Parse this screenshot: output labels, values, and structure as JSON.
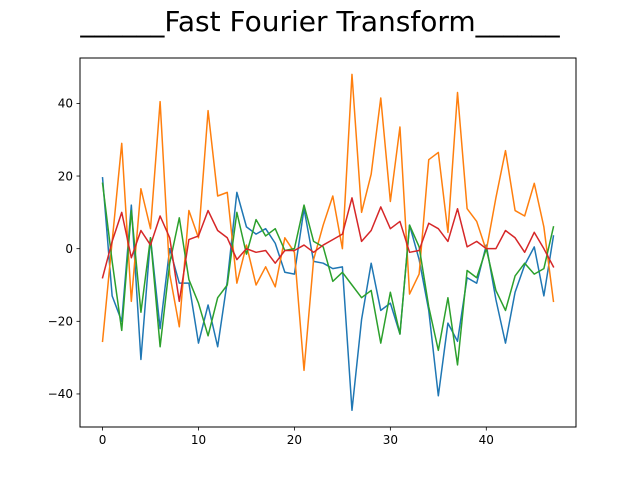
{
  "chart_data": {
    "type": "line",
    "title": "______Fast Fourier Transform______",
    "xlabel": "",
    "ylabel": "",
    "xlim": [
      -2.35,
      49.35
    ],
    "ylim": [
      -49.1,
      52.5
    ],
    "xticks": [
      0,
      10,
      20,
      30,
      40
    ],
    "yticks": [
      -40,
      -20,
      0,
      20,
      40
    ],
    "grid": false,
    "series": [
      {
        "color": "#1f77b4",
        "x": [
          0,
          1,
          2,
          3,
          4,
          5,
          6,
          7,
          8,
          9,
          10,
          11,
          12,
          13,
          14,
          15,
          16,
          17,
          18,
          19,
          20,
          21,
          22,
          23,
          24,
          25,
          26,
          27,
          28,
          29,
          30,
          31,
          32,
          33,
          34,
          35,
          36,
          37,
          38,
          39,
          40,
          41,
          42,
          43,
          44,
          45,
          46,
          47
        ],
        "values": [
          19.5,
          -13,
          -20,
          12,
          -30.5,
          3,
          -22,
          0,
          -9.5,
          -9.5,
          -26,
          -15.5,
          -27,
          -9,
          15.5,
          6,
          4,
          5.5,
          1.5,
          -6.5,
          -7,
          11,
          -3.5,
          -4,
          -5.5,
          -5,
          -44.5,
          -19.5,
          -4,
          -17,
          -15,
          -23.5,
          6.5,
          -3,
          -17,
          -40.5,
          -20.5,
          -25.5,
          -8,
          -9.5,
          1,
          -14,
          -26,
          -12,
          -4.5,
          0.5,
          -13,
          3.5
        ]
      },
      {
        "color": "#ff7f0e",
        "x": [
          0,
          1,
          2,
          3,
          4,
          5,
          6,
          7,
          8,
          9,
          10,
          11,
          12,
          13,
          14,
          15,
          16,
          17,
          18,
          19,
          20,
          21,
          22,
          23,
          24,
          25,
          26,
          27,
          28,
          29,
          30,
          31,
          32,
          33,
          34,
          35,
          36,
          37,
          38,
          39,
          40,
          41,
          42,
          43,
          44,
          45,
          46,
          47
        ],
        "values": [
          -25.5,
          2,
          29,
          -14.5,
          16.5,
          5.5,
          40.5,
          -7,
          -21.5,
          10.5,
          3,
          38,
          14.5,
          15.5,
          -9.5,
          1,
          -10,
          -5,
          -10.5,
          3,
          -1,
          -33.5,
          -3,
          6.5,
          14.5,
          0,
          48,
          10,
          20.5,
          41.5,
          13,
          33.5,
          -12.5,
          -7,
          24.5,
          26.5,
          4.5,
          43,
          11,
          7.5,
          -0.5,
          14,
          27,
          10.5,
          9,
          18,
          6,
          -14.5
        ]
      },
      {
        "color": "#2ca02c",
        "x": [
          0,
          1,
          2,
          3,
          4,
          5,
          6,
          7,
          8,
          9,
          10,
          11,
          12,
          13,
          14,
          15,
          16,
          17,
          18,
          19,
          20,
          21,
          22,
          23,
          24,
          25,
          26,
          27,
          28,
          29,
          30,
          31,
          32,
          33,
          34,
          35,
          36,
          37,
          38,
          39,
          40,
          41,
          42,
          43,
          44,
          45,
          46,
          47
        ],
        "values": [
          18,
          -3.5,
          -22.5,
          10.5,
          -17.5,
          3,
          -27,
          -4,
          8.5,
          -8.5,
          -15,
          -24,
          -13.5,
          -10,
          10,
          -1.5,
          8,
          3.5,
          5.5,
          -0.5,
          0,
          12,
          2,
          0.5,
          -9,
          -6.5,
          -10,
          -13.5,
          -11.5,
          -26,
          -12,
          -23.5,
          6.5,
          0.5,
          -16,
          -28,
          -13.5,
          -32,
          -6,
          -8,
          0,
          -11.5,
          -17,
          -7.5,
          -4,
          -7,
          -5.5,
          6
        ]
      },
      {
        "color": "#d62728",
        "x": [
          0,
          1,
          2,
          3,
          4,
          5,
          6,
          7,
          8,
          9,
          10,
          11,
          12,
          13,
          14,
          15,
          16,
          17,
          18,
          19,
          20,
          21,
          22,
          23,
          24,
          25,
          26,
          27,
          28,
          29,
          30,
          31,
          32,
          33,
          34,
          35,
          36,
          37,
          38,
          39,
          40,
          41,
          42,
          43,
          44,
          45,
          46,
          47
        ],
        "values": [
          -8,
          2,
          10,
          -2.5,
          5,
          1,
          9,
          3,
          -14.5,
          2.5,
          3.5,
          10.5,
          5,
          3,
          -3,
          0,
          -1,
          -0.5,
          -4,
          -0.5,
          -0.5,
          1,
          -1,
          1,
          2.5,
          4,
          14,
          2,
          5,
          11.5,
          5.5,
          7.5,
          -1,
          -0.5,
          7,
          5.5,
          2,
          11,
          0.5,
          2,
          0,
          0,
          5,
          3,
          -1,
          4.5,
          0,
          -5
        ]
      }
    ]
  }
}
